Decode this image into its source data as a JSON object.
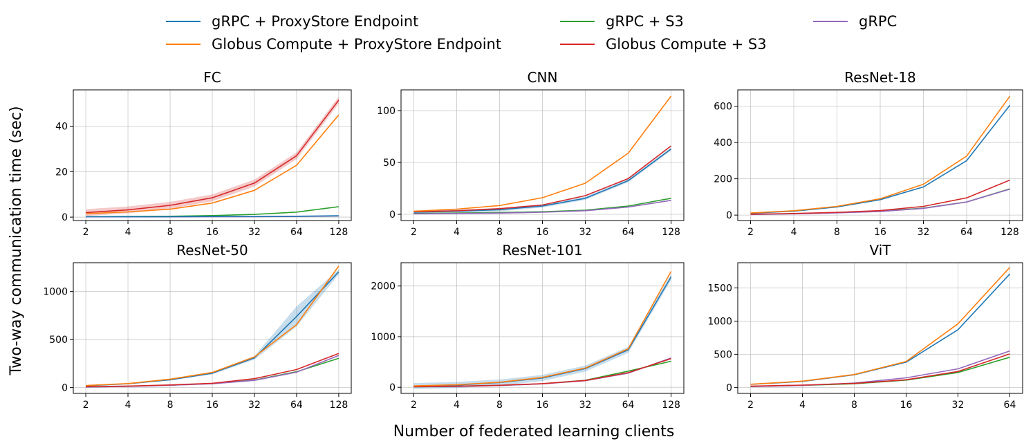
{
  "figure": {
    "xlabel": "Number of federated learning clients",
    "ylabel": "Two-way communication time (sec)"
  },
  "legend": [
    {
      "label": "gRPC + ProxyStore Endpoint",
      "color": "#1f77b4"
    },
    {
      "label": "Globus Compute + ProxyStore Endpoint",
      "color": "#ff7f0e"
    },
    {
      "label": "gRPC + S3",
      "color": "#2ca02c"
    },
    {
      "label": "Globus Compute + S3",
      "color": "#d62728"
    },
    {
      "label": "gRPC",
      "color": "#9467bd"
    }
  ],
  "chart_data": [
    {
      "type": "line",
      "title": "FC",
      "categories": [
        "2",
        "4",
        "8",
        "16",
        "32",
        "64",
        "128"
      ],
      "ylim": [
        -1.5,
        56
      ],
      "yticks": [
        0,
        20,
        40
      ],
      "series": [
        {
          "name": "gRPC + ProxyStore Endpoint",
          "values": [
            0.2,
            0.2,
            0.2,
            0.3,
            0.3,
            0.4,
            0.6
          ]
        },
        {
          "name": "Globus Compute + ProxyStore Endpoint",
          "values": [
            1.5,
            2.3,
            3.5,
            6.2,
            11.8,
            22.8,
            45.0
          ]
        },
        {
          "name": "gRPC + S3",
          "values": [
            0.2,
            0.3,
            0.4,
            0.7,
            1.2,
            2.2,
            4.6
          ]
        },
        {
          "name": "Globus Compute + S3",
          "values": [
            2.0,
            3.2,
            5.2,
            8.5,
            15.0,
            27.0,
            51.5
          ],
          "band": 1.5
        },
        {
          "name": "gRPC",
          "values": [
            0.1,
            0.1,
            0.1,
            0.2,
            0.2,
            0.3,
            0.5
          ]
        }
      ]
    },
    {
      "type": "line",
      "title": "CNN",
      "categories": [
        "2",
        "4",
        "8",
        "16",
        "32",
        "64",
        "128"
      ],
      "ylim": [
        -6,
        120
      ],
      "yticks": [
        0,
        50,
        100
      ],
      "series": [
        {
          "name": "gRPC + ProxyStore Endpoint",
          "values": [
            2.0,
            3.0,
            4.5,
            8.0,
            15.5,
            32.5,
            63.0
          ],
          "band": 1.5
        },
        {
          "name": "Globus Compute + ProxyStore Endpoint",
          "values": [
            3.0,
            5.0,
            8.5,
            16.0,
            30.0,
            59.0,
            114.0
          ]
        },
        {
          "name": "gRPC + S3",
          "values": [
            0.8,
            1.2,
            1.8,
            2.5,
            4.0,
            8.0,
            15.5
          ]
        },
        {
          "name": "Globus Compute + S3",
          "values": [
            2.5,
            3.5,
            5.5,
            9.0,
            18.0,
            34.5,
            66.0
          ]
        },
        {
          "name": "gRPC",
          "values": [
            0.5,
            0.8,
            1.2,
            2.0,
            3.5,
            7.0,
            13.5
          ]
        }
      ]
    },
    {
      "type": "line",
      "title": "ResNet-18",
      "categories": [
        "2",
        "4",
        "8",
        "16",
        "32",
        "64",
        "128"
      ],
      "ylim": [
        -30,
        690
      ],
      "yticks": [
        0,
        200,
        400,
        600
      ],
      "series": [
        {
          "name": "gRPC + ProxyStore Endpoint",
          "values": [
            10,
            22,
            45,
            85,
            155,
            300,
            605
          ]
        },
        {
          "name": "Globus Compute + ProxyStore Endpoint",
          "values": [
            12,
            24,
            48,
            90,
            170,
            325,
            655
          ]
        },
        {
          "name": "gRPC + S3",
          "values": [
            4,
            8,
            14,
            22,
            38,
            72,
            145
          ]
        },
        {
          "name": "Globus Compute + S3",
          "values": [
            5,
            9,
            15,
            25,
            48,
            95,
            193
          ]
        },
        {
          "name": "gRPC",
          "values": [
            3,
            7,
            12,
            20,
            37,
            72,
            143
          ]
        }
      ]
    },
    {
      "type": "line",
      "title": "ResNet-50",
      "categories": [
        "2",
        "4",
        "8",
        "16",
        "32",
        "64",
        "128"
      ],
      "ylim": [
        -60,
        1300
      ],
      "yticks": [
        0,
        500,
        1000
      ],
      "series": [
        {
          "name": "gRPC + ProxyStore Endpoint",
          "values": [
            20,
            40,
            82,
            150,
            310,
            740,
            1205
          ],
          "band_values": [
            3,
            5,
            8,
            12,
            18,
            105,
            25
          ]
        },
        {
          "name": "Globus Compute + ProxyStore Endpoint",
          "values": [
            22,
            42,
            88,
            158,
            320,
            655,
            1265
          ]
        },
        {
          "name": "gRPC + S3",
          "values": [
            7,
            14,
            25,
            42,
            78,
            165,
            305
          ]
        },
        {
          "name": "Globus Compute + S3",
          "values": [
            9,
            16,
            28,
            45,
            93,
            188,
            355
          ]
        },
        {
          "name": "gRPC",
          "values": [
            6,
            12,
            24,
            40,
            75,
            160,
            335
          ]
        }
      ]
    },
    {
      "type": "line",
      "title": "ResNet-101",
      "categories": [
        "2",
        "4",
        "8",
        "16",
        "32",
        "64",
        "128"
      ],
      "ylim": [
        -120,
        2460
      ],
      "yticks": [
        0,
        1000,
        2000
      ],
      "series": [
        {
          "name": "gRPC + ProxyStore Endpoint",
          "values": [
            25,
            45,
            95,
            185,
            370,
            740,
            2180
          ],
          "band": 60
        },
        {
          "name": "Globus Compute + ProxyStore Endpoint",
          "values": [
            28,
            50,
            100,
            195,
            380,
            760,
            2290
          ]
        },
        {
          "name": "gRPC + S3",
          "values": [
            10,
            20,
            38,
            70,
            140,
            320,
            515
          ]
        },
        {
          "name": "Globus Compute + S3",
          "values": [
            12,
            22,
            40,
            72,
            135,
            290,
            565
          ]
        },
        {
          "name": "gRPC",
          "values": [
            9,
            18,
            35,
            68,
            130,
            280,
            580
          ]
        }
      ]
    },
    {
      "type": "line",
      "title": "ViT",
      "categories": [
        "2",
        "4",
        "8",
        "16",
        "32",
        "64"
      ],
      "ylim": [
        -90,
        1880
      ],
      "yticks": [
        0,
        500,
        1000,
        1500
      ],
      "series": [
        {
          "name": "gRPC + ProxyStore Endpoint",
          "values": [
            45,
            90,
            190,
            380,
            870,
            1710
          ]
        },
        {
          "name": "Globus Compute + ProxyStore Endpoint",
          "values": [
            48,
            95,
            195,
            390,
            960,
            1810
          ]
        },
        {
          "name": "gRPC + S3",
          "values": [
            15,
            30,
            55,
            110,
            225,
            455
          ]
        },
        {
          "name": "Globus Compute + S3",
          "values": [
            18,
            35,
            60,
            115,
            240,
            505
          ]
        },
        {
          "name": "gRPC",
          "values": [
            12,
            30,
            65,
            145,
            280,
            550
          ]
        }
      ]
    }
  ]
}
